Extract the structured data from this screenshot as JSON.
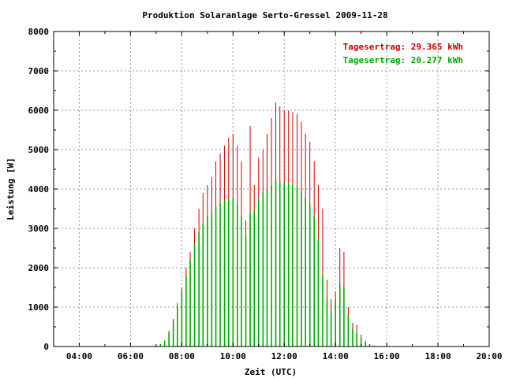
{
  "chart_data": {
    "type": "bar",
    "title": "Produktion Solaranlage Serto-Gressel 2009-11-28",
    "xlabel": "Zeit (UTC)",
    "ylabel": "Leistung [W]",
    "xlim": [
      3,
      20
    ],
    "ylim": [
      0,
      8000
    ],
    "x_ticks": [
      "04:00",
      "06:00",
      "08:00",
      "10:00",
      "12:00",
      "14:00",
      "16:00",
      "18:00",
      "20:00"
    ],
    "y_ticks": [
      "0",
      "1000",
      "2000",
      "3000",
      "4000",
      "5000",
      "6000",
      "7000",
      "8000"
    ],
    "grid": true,
    "legend_position": "top-right",
    "legend_entries": [
      "Tagesertrag: 29.365 kWh",
      "Tagesertrag: 20.277 kWh"
    ],
    "series": [
      {
        "name": "Tagesertrag: 29.365 kWh",
        "color": "#cc0000",
        "points": [
          [
            7.0,
            20
          ],
          [
            7.17,
            60
          ],
          [
            7.33,
            150
          ],
          [
            7.5,
            400
          ],
          [
            7.67,
            700
          ],
          [
            7.83,
            1100
          ],
          [
            8.0,
            1500
          ],
          [
            8.17,
            2000
          ],
          [
            8.33,
            2400
          ],
          [
            8.5,
            3000
          ],
          [
            8.67,
            3500
          ],
          [
            8.83,
            3900
          ],
          [
            9.0,
            4100
          ],
          [
            9.17,
            4300
          ],
          [
            9.33,
            4700
          ],
          [
            9.5,
            4900
          ],
          [
            9.67,
            5100
          ],
          [
            9.83,
            5300
          ],
          [
            10.0,
            5400
          ],
          [
            10.17,
            5100
          ],
          [
            10.33,
            4700
          ],
          [
            10.5,
            3200
          ],
          [
            10.67,
            5600
          ],
          [
            10.83,
            4100
          ],
          [
            11.0,
            4800
          ],
          [
            11.17,
            5000
          ],
          [
            11.33,
            5400
          ],
          [
            11.5,
            5800
          ],
          [
            11.67,
            6200
          ],
          [
            11.83,
            6100
          ],
          [
            12.0,
            6000
          ],
          [
            12.17,
            6000
          ],
          [
            12.33,
            5950
          ],
          [
            12.5,
            5900
          ],
          [
            12.67,
            5700
          ],
          [
            12.83,
            5400
          ],
          [
            13.0,
            5200
          ],
          [
            13.17,
            4700
          ],
          [
            13.33,
            4100
          ],
          [
            13.5,
            3500
          ],
          [
            13.67,
            1700
          ],
          [
            13.83,
            1200
          ],
          [
            14.0,
            1400
          ],
          [
            14.17,
            2500
          ],
          [
            14.33,
            2400
          ],
          [
            14.5,
            1000
          ],
          [
            14.67,
            600
          ],
          [
            14.83,
            550
          ],
          [
            15.0,
            300
          ],
          [
            15.17,
            150
          ],
          [
            15.33,
            60
          ],
          [
            15.5,
            20
          ]
        ]
      },
      {
        "name": "Tagesertrag: 20.277 kWh",
        "color": "#00aa00",
        "points": [
          [
            7.0,
            20
          ],
          [
            7.17,
            60
          ],
          [
            7.33,
            150
          ],
          [
            7.5,
            350
          ],
          [
            7.67,
            650
          ],
          [
            7.83,
            1000
          ],
          [
            8.0,
            1400
          ],
          [
            8.17,
            1800
          ],
          [
            8.33,
            2200
          ],
          [
            8.5,
            2600
          ],
          [
            8.67,
            2900
          ],
          [
            8.83,
            3100
          ],
          [
            9.0,
            3300
          ],
          [
            9.17,
            3400
          ],
          [
            9.33,
            3550
          ],
          [
            9.5,
            3650
          ],
          [
            9.67,
            3700
          ],
          [
            9.83,
            3750
          ],
          [
            10.0,
            3750
          ],
          [
            10.17,
            3600
          ],
          [
            10.33,
            3300
          ],
          [
            10.5,
            2800
          ],
          [
            10.67,
            3400
          ],
          [
            10.83,
            3450
          ],
          [
            11.0,
            3700
          ],
          [
            11.17,
            3900
          ],
          [
            11.33,
            4000
          ],
          [
            11.5,
            4100
          ],
          [
            11.67,
            4250
          ],
          [
            11.83,
            4200
          ],
          [
            12.0,
            4150
          ],
          [
            12.17,
            4150
          ],
          [
            12.33,
            4100
          ],
          [
            12.5,
            4050
          ],
          [
            12.67,
            3950
          ],
          [
            12.83,
            3800
          ],
          [
            13.0,
            3600
          ],
          [
            13.17,
            3300
          ],
          [
            13.33,
            2700
          ],
          [
            13.5,
            1800
          ],
          [
            13.67,
            1200
          ],
          [
            13.83,
            900
          ],
          [
            14.0,
            1200
          ],
          [
            14.17,
            1600
          ],
          [
            14.33,
            1500
          ],
          [
            14.5,
            800
          ],
          [
            14.67,
            450
          ],
          [
            14.83,
            350
          ],
          [
            15.0,
            220
          ],
          [
            15.17,
            110
          ],
          [
            15.33,
            45
          ],
          [
            15.5,
            15
          ]
        ]
      }
    ]
  }
}
